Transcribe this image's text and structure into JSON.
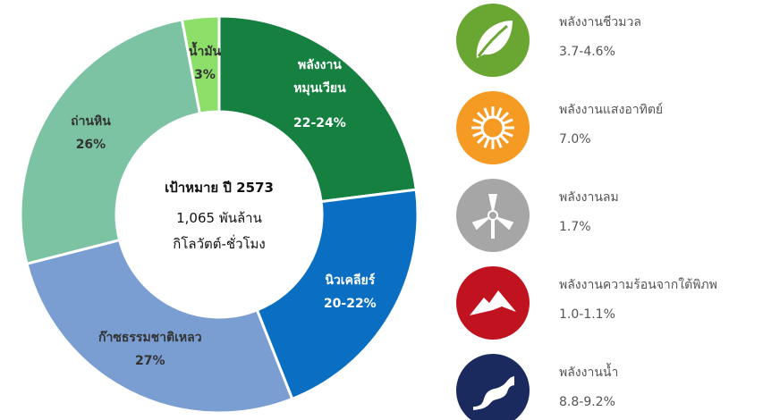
{
  "chart_data": {
    "type": "donut",
    "center_title": "เป้าหมาย ปี 2573",
    "center_subtitle": "1,065 พันล้าน\nกิโลวัตต์-ชั่วโมง",
    "categories": [
      "พลังงาน\nหมุนเวียน",
      "นิวเคลียร์",
      "ก๊าซธรรมชาติเหลว",
      "ถ่านหิน",
      "น้ำมัน"
    ],
    "values": [
      23,
      21,
      27,
      26,
      3
    ],
    "value_labels": [
      "22-24%",
      "20-22%",
      "27%",
      "26%",
      "3%"
    ],
    "colors": [
      "#168040",
      "#0a6fc2",
      "#7a9ed2",
      "#7cc3a3",
      "#8ce06a"
    ],
    "label_colors": [
      "#ffffff",
      "#ffffff",
      "#333333",
      "#333333",
      "#333333"
    ]
  },
  "renewable_breakdown": [
    {
      "name": "พลังงานชีวมวล",
      "value": "3.7-4.6%",
      "color": "#6aa632"
    },
    {
      "name": "พลังงานแสงอาทิตย์",
      "value": "7.0%",
      "color": "#f59a23"
    },
    {
      "name": "พลังงานลม",
      "value": "1.7%",
      "color": "#a6a6a6"
    },
    {
      "name": "พลังงานความร้อนจากใต้พิภพ",
      "value": "1.0-1.1%",
      "color": "#c0121f"
    },
    {
      "name": "พลังงานน้ำ",
      "value": "8.8-9.2%",
      "color": "#1a2a5e"
    }
  ]
}
